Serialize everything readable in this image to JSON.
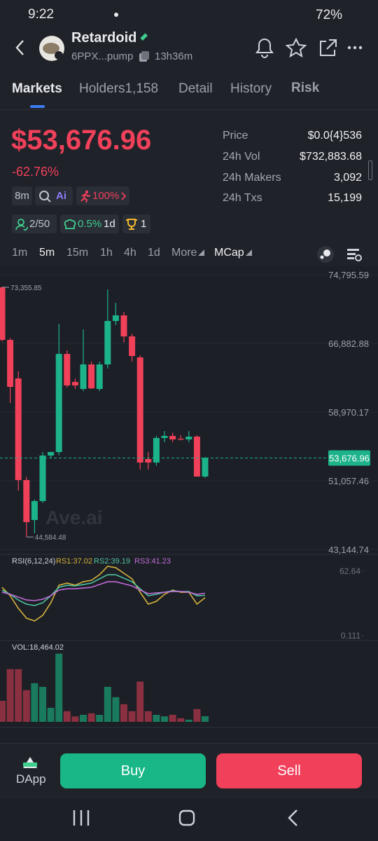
{
  "status_bar": {
    "time": "9:22",
    "battery": "72%"
  },
  "header": {
    "name": "Retardoid",
    "address": "6PPX...pump",
    "age": "13h36m"
  },
  "tabs": {
    "markets": "Markets",
    "holders": "Holders",
    "holders_count": "1,158",
    "detail": "Detail",
    "history": "History",
    "risk": "Risk"
  },
  "price": {
    "value": "$53,676.96",
    "change": "-62.76%"
  },
  "badges": {
    "age": "8m",
    "ai": "Ai",
    "score": "100%",
    "insiders": "2/50",
    "top": "0.5%",
    "top_period": "1d",
    "trophy": "1"
  },
  "stats": [
    {
      "label": "Price",
      "value": "$0.0{4}536"
    },
    {
      "label": "24h Vol",
      "value": "$732,883.68"
    },
    {
      "label": "24h Makers",
      "value": "3,092"
    },
    {
      "label": "24h Txs",
      "value": "15,199"
    }
  ],
  "intervals": [
    "1m",
    "5m",
    "15m",
    "1h",
    "4h",
    "1d",
    "More",
    "MCap"
  ],
  "watermark": "Ave.ai",
  "chart_data": [
    {
      "type": "candlestick",
      "up_color": "#1db38a",
      "down_color": "#f0405a",
      "open": [
        73343,
        67287,
        62846,
        51139,
        46537,
        48717,
        53965,
        54369,
        65672,
        62443,
        61635,
        64461,
        61635,
        64461,
        69467,
        70113,
        67691,
        65268,
        53561,
        53158,
        55984,
        56226,
        55900,
        55822,
        56145,
        51543
      ],
      "high": [
        73355.85,
        67500,
        63654,
        51500,
        48900,
        54369,
        54400,
        69144,
        66076,
        62800,
        68498,
        64800,
        64800,
        73100,
        71566,
        70500,
        68000,
        65500,
        54369,
        56226,
        56791,
        56600,
        56300,
        56791,
        56300,
        53800
      ],
      "low": [
        67100,
        60020,
        49928,
        44584.48,
        45000,
        48500,
        53700,
        54000,
        61800,
        61635,
        61400,
        61635,
        61400,
        64000,
        69000,
        67000,
        64800,
        52350,
        52350,
        52800,
        55500,
        55500,
        55700,
        55500,
        51543,
        51400
      ],
      "close": [
        67287,
        61877,
        51139,
        46295,
        48717,
        53965,
        54369,
        65672,
        62039,
        62039,
        64461,
        61700,
        64461,
        69467,
        70113,
        67691,
        65430,
        53158,
        53158,
        55984,
        56226,
        55822,
        55822,
        56145,
        51543,
        53676.96
      ],
      "ylim": [
        43144.74,
        74795.59
      ],
      "yticks": [
        {
          "value": 74795.59,
          "label": "74,795.59"
        },
        {
          "value": 66882.88,
          "label": "66,882.88"
        },
        {
          "value": 58970.17,
          "label": "58,970.17"
        },
        {
          "value": 51057.46,
          "label": "51,057.46"
        },
        {
          "value": 43144.74,
          "label": "43,144.74"
        }
      ],
      "last_price": {
        "value": 53676.96,
        "label": "53,676.96"
      },
      "high_note": {
        "value": 73355.85,
        "label": "73,355.85"
      },
      "low_note": {
        "value": 44584.48,
        "label": "44,584.48"
      }
    },
    {
      "type": "line",
      "title": "RSI(6,12,24)",
      "ylim": [
        0.111,
        62.64
      ],
      "yticks": [
        62.64,
        0.111
      ],
      "series": [
        {
          "name": "RS1",
          "label": "RS1:37.02",
          "color": "#d4b13a",
          "values": [
            47.0,
            38.8,
            26.6,
            17.1,
            14.4,
            19.8,
            32.0,
            49.0,
            51.1,
            49.0,
            52.4,
            53.8,
            59.2,
            67.4,
            66.0,
            60.6,
            55.2,
            42.2,
            30.7,
            33.4,
            40.2,
            44.3,
            42.2,
            42.2,
            30.7,
            37.02
          ]
        },
        {
          "name": "RS2",
          "label": "RS2:39.19",
          "color": "#4fc3a1",
          "values": [
            44.3,
            40.2,
            34.7,
            30.7,
            29.3,
            32.0,
            38.8,
            47.0,
            49.0,
            48.4,
            49.7,
            51.1,
            55.2,
            59.2,
            59.2,
            55.8,
            52.4,
            45.6,
            38.8,
            40.2,
            42.2,
            43.6,
            42.9,
            42.9,
            38.8,
            39.19
          ]
        },
        {
          "name": "RS3",
          "label": "RS3:41.23",
          "color": "#c06bd8",
          "values": [
            42.2,
            40.2,
            37.5,
            34.7,
            34.1,
            35.4,
            38.8,
            44.3,
            45.6,
            45.6,
            46.3,
            47.0,
            49.7,
            52.4,
            52.4,
            50.4,
            48.4,
            44.3,
            40.9,
            41.5,
            42.2,
            42.9,
            42.9,
            42.2,
            40.2,
            41.23
          ]
        }
      ]
    },
    {
      "type": "bar",
      "title": "VOL:18,464.02",
      "ylim": [
        0,
        230000
      ],
      "values": [
        69000,
        173000,
        173000,
        104000,
        127000,
        115000,
        46000,
        224000,
        35000,
        18000,
        23000,
        28000,
        23000,
        115000,
        81000,
        58000,
        35000,
        132000,
        35000,
        23000,
        18000,
        23000,
        12000,
        7000,
        42000,
        18464.02
      ]
    }
  ],
  "footer": {
    "dapp": "DApp",
    "buy": "Buy",
    "sell": "Sell"
  }
}
